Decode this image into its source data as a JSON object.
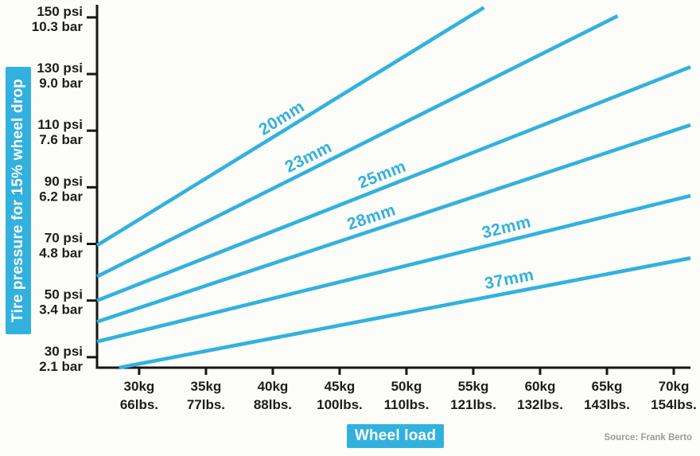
{
  "colors": {
    "accent": "#32b1df",
    "axis": "#161616",
    "text": "#1d1d1d",
    "muted": "#9a9a9a",
    "background": "#fcfcf8",
    "badge_text": "#ffffff"
  },
  "y_axis": {
    "title": "Tire pressure for 15% wheel drop",
    "ticks": [
      {
        "psi": "150 psi",
        "bar": "10.3 bar",
        "value": 150
      },
      {
        "psi": "130 psi",
        "bar": "9.0 bar",
        "value": 130
      },
      {
        "psi": "110 psi",
        "bar": "7.6 bar",
        "value": 110
      },
      {
        "psi": "90 psi",
        "bar": "6.2 bar",
        "value": 90
      },
      {
        "psi": "70 psi",
        "bar": "4.8 bar",
        "value": 70
      },
      {
        "psi": "50 psi",
        "bar": "3.4 bar",
        "value": 50
      },
      {
        "psi": "30 psi",
        "bar": "2.1 bar",
        "value": 30
      }
    ]
  },
  "x_axis": {
    "title": "Wheel load",
    "ticks": [
      {
        "kg": "30kg",
        "lbs": "66lbs.",
        "value": 30
      },
      {
        "kg": "35kg",
        "lbs": "77lbs.",
        "value": 35
      },
      {
        "kg": "40kg",
        "lbs": "88lbs.",
        "value": 40
      },
      {
        "kg": "45kg",
        "lbs": "100lbs.",
        "value": 45
      },
      {
        "kg": "50kg",
        "lbs": "110lbs.",
        "value": 50
      },
      {
        "kg": "55kg",
        "lbs": "121lbs.",
        "value": 55
      },
      {
        "kg": "60kg",
        "lbs": "132lbs.",
        "value": 60
      },
      {
        "kg": "65kg",
        "lbs": "143lbs.",
        "value": 65
      },
      {
        "kg": "70kg",
        "lbs": "154lbs.",
        "value": 70
      }
    ]
  },
  "source_note": "Source: Frank Berto",
  "chart_data": {
    "type": "line",
    "xlabel": "Wheel load",
    "ylabel": "Tire pressure for 15% wheel drop",
    "units": {
      "pressure": [
        "psi",
        "bar"
      ],
      "load": [
        "kg",
        "lbs."
      ]
    },
    "x_domain_kg": [
      26.85,
      71.25
    ],
    "y_domain_psi": [
      26.3,
      153.9
    ],
    "grid": false,
    "legend": "inline-rotated-labels",
    "series": [
      {
        "name": "20mm",
        "points_kg_psi": [
          [
            26.85,
            69.5
          ],
          [
            55.8,
            153.5
          ]
        ],
        "label_at_kg": 40.7
      },
      {
        "name": "23mm",
        "points_kg_psi": [
          [
            26.85,
            58.5
          ],
          [
            65.8,
            150.5
          ]
        ],
        "label_at_kg": 42.7
      },
      {
        "name": "25mm",
        "points_kg_psi": [
          [
            26.85,
            50.0
          ],
          [
            71.25,
            132.5
          ]
        ],
        "label_at_kg": 48.2
      },
      {
        "name": "28mm",
        "points_kg_psi": [
          [
            26.85,
            42.5
          ],
          [
            71.25,
            112.0
          ]
        ],
        "label_at_kg": 47.4
      },
      {
        "name": "32mm",
        "points_kg_psi": [
          [
            26.85,
            35.5
          ],
          [
            71.25,
            87.0
          ]
        ],
        "label_at_kg": 57.5
      },
      {
        "name": "37mm",
        "points_kg_psi": [
          [
            28.5,
            26.3
          ],
          [
            71.25,
            65.0
          ]
        ],
        "label_at_kg": 57.7
      }
    ]
  }
}
